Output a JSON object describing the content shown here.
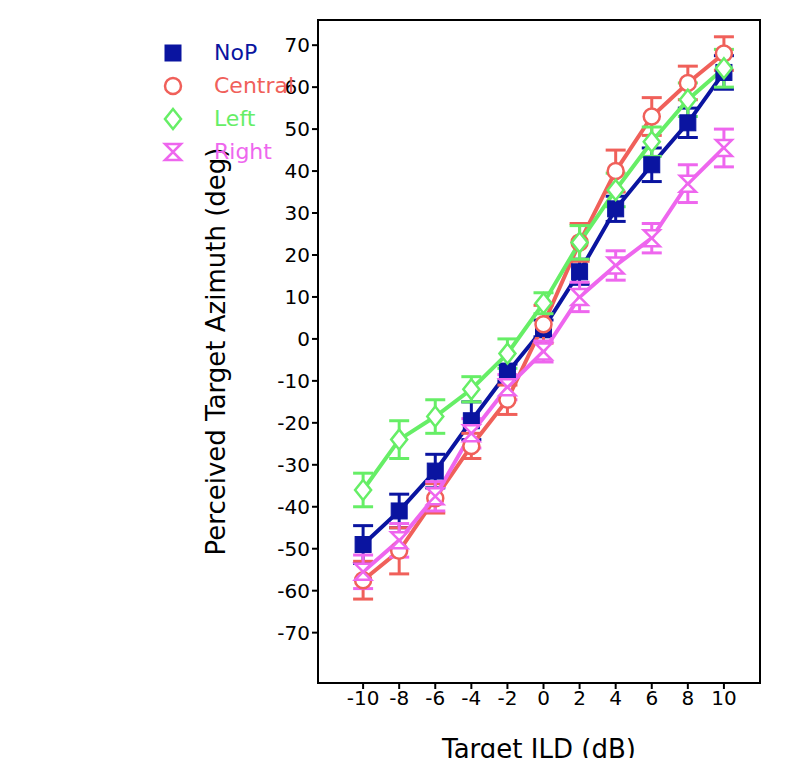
{
  "chart_data": {
    "type": "line",
    "x_label": "Target ILD (dB)",
    "y_label": "Perceived Target Azimuth (deg)",
    "x": [
      -10,
      -8,
      -6,
      -4,
      -2,
      0,
      2,
      4,
      6,
      8,
      10
    ],
    "xlim": [
      -12.5,
      12
    ],
    "xticks": [
      -10,
      -8,
      -6,
      -4,
      -2,
      0,
      2,
      4,
      6,
      8,
      10
    ],
    "ylim": [
      -82,
      76
    ],
    "yticks": [
      -70,
      -60,
      -50,
      -40,
      -30,
      -20,
      -10,
      0,
      10,
      20,
      30,
      40,
      50,
      60,
      70
    ],
    "grid": false,
    "legend": "upper left",
    "series": [
      {
        "name": "NoP",
        "color": "#0a14a0",
        "marker": "square",
        "values": [
          -49,
          -41,
          -31.5,
          -19.5,
          -8,
          2.5,
          16,
          31,
          41.5,
          51.5,
          63.5
        ],
        "errors": [
          4.5,
          4,
          4,
          4.5,
          2,
          2,
          3,
          3,
          4,
          3.5,
          4
        ]
      },
      {
        "name": "Central",
        "color": "#f0605a",
        "marker": "circle",
        "values": [
          -57.5,
          -50.5,
          -38,
          -25.5,
          -14.5,
          3.5,
          23,
          40,
          53,
          61,
          68
        ],
        "errors": [
          4.5,
          5.5,
          3.5,
          3,
          3.5,
          4.5,
          4.5,
          5,
          4.5,
          4,
          4
        ]
      },
      {
        "name": "Left",
        "color": "#66ee66",
        "marker": "diamond",
        "values": [
          -36,
          -24,
          -18.5,
          -12,
          -3.5,
          8.5,
          23,
          35.5,
          47,
          57,
          64.5
        ],
        "errors": [
          4,
          4.5,
          4,
          3,
          3.5,
          2.5,
          4,
          4,
          3.5,
          4,
          4.5
        ]
      },
      {
        "name": "Right",
        "color": "#ee66ee",
        "marker": "hourglass",
        "values": [
          -55.5,
          -48,
          -37.5,
          -22.5,
          -11.5,
          -3,
          10,
          17.5,
          24,
          37,
          45.5
        ],
        "errors": [
          4,
          4,
          3.5,
          3.5,
          3,
          2.5,
          3.5,
          3.5,
          3.5,
          4.5,
          4.5
        ]
      }
    ]
  }
}
